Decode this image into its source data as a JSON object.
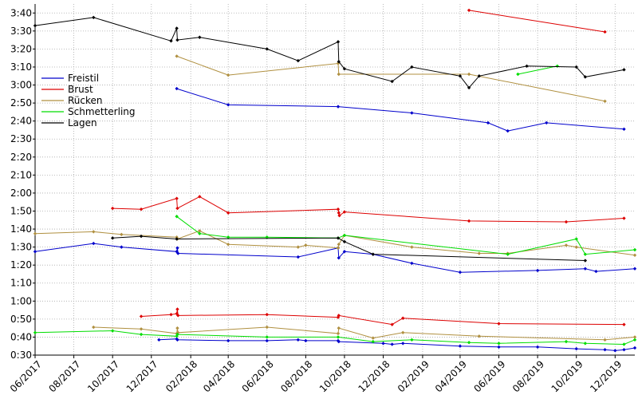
{
  "chart_data": {
    "type": "line",
    "title": "",
    "xlabel": "",
    "ylabel": "",
    "x_axis": {
      "min": "2017-06-01",
      "max": "2020-01-01",
      "ticks": [
        {
          "date": "2017-06-01",
          "label": "06/2017"
        },
        {
          "date": "2017-08-01",
          "label": "08/2017"
        },
        {
          "date": "2017-10-01",
          "label": "10/2017"
        },
        {
          "date": "2017-12-01",
          "label": "12/2017"
        },
        {
          "date": "2018-02-01",
          "label": "02/2018"
        },
        {
          "date": "2018-04-01",
          "label": "04/2018"
        },
        {
          "date": "2018-06-01",
          "label": "06/2018"
        },
        {
          "date": "2018-08-01",
          "label": "08/2018"
        },
        {
          "date": "2018-10-01",
          "label": "10/2018"
        },
        {
          "date": "2018-12-01",
          "label": "12/2018"
        },
        {
          "date": "2019-02-01",
          "label": "02/2019"
        },
        {
          "date": "2019-04-01",
          "label": "04/2019"
        },
        {
          "date": "2019-06-01",
          "label": "06/2019"
        },
        {
          "date": "2019-08-01",
          "label": "08/2019"
        },
        {
          "date": "2019-10-01",
          "label": "10/2019"
        },
        {
          "date": "2019-12-01",
          "label": "12/2019"
        }
      ]
    },
    "y_axis": {
      "min": 30,
      "max": 225,
      "ticks": [
        {
          "value": 30,
          "label": "0:30"
        },
        {
          "value": 40,
          "label": "0:40"
        },
        {
          "value": 50,
          "label": "0:50"
        },
        {
          "value": 60,
          "label": "1:00"
        },
        {
          "value": 70,
          "label": "1:10"
        },
        {
          "value": 80,
          "label": "1:20"
        },
        {
          "value": 90,
          "label": "1:30"
        },
        {
          "value": 100,
          "label": "1:40"
        },
        {
          "value": 110,
          "label": "1:50"
        },
        {
          "value": 120,
          "label": "2:00"
        },
        {
          "value": 130,
          "label": "2:10"
        },
        {
          "value": 140,
          "label": "2:20"
        },
        {
          "value": 150,
          "label": "2:30"
        },
        {
          "value": 160,
          "label": "2:40"
        },
        {
          "value": 170,
          "label": "2:50"
        },
        {
          "value": 180,
          "label": "3:00"
        },
        {
          "value": 190,
          "label": "3:10"
        },
        {
          "value": 200,
          "label": "3:20"
        },
        {
          "value": 210,
          "label": "3:30"
        },
        {
          "value": 220,
          "label": "3:40"
        }
      ]
    },
    "grid": {
      "x": true,
      "y": true,
      "style": "dotted"
    },
    "legend": {
      "position": "upper-left",
      "entries": [
        {
          "name": "Freistil",
          "color": "#0000cc"
        },
        {
          "name": "Brust",
          "color": "#dd0000"
        },
        {
          "name": "Rücken",
          "color": "#b09040"
        },
        {
          "name": "Schmetterling",
          "color": "#00dd00"
        },
        {
          "name": "Lagen",
          "color": "#000000"
        }
      ]
    },
    "series": [
      {
        "name": "Freistil",
        "color": "#0000cc",
        "segments": [
          [
            [
              "2017-12-13",
              38.5
            ],
            [
              "2018-01-10",
              39
            ],
            [
              "2018-01-11",
              38.5
            ],
            [
              "2018-04-01",
              38
            ],
            [
              "2018-06-01",
              38
            ],
            [
              "2018-07-20",
              38.5
            ],
            [
              "2018-08-01",
              38
            ],
            [
              "2018-09-21",
              38
            ],
            [
              "2018-09-22",
              37.5
            ],
            [
              "2018-12-01",
              36.5
            ],
            [
              "2018-12-15",
              36
            ],
            [
              "2019-01-01",
              36.5
            ],
            [
              "2019-04-01",
              35
            ],
            [
              "2019-06-01",
              34.5
            ],
            [
              "2019-08-01",
              34.5
            ],
            [
              "2019-10-01",
              33.5
            ],
            [
              "2019-11-15",
              33
            ],
            [
              "2019-12-01",
              32.5
            ],
            [
              "2019-12-15",
              33
            ],
            [
              "2020-01-01",
              34
            ]
          ],
          [
            [
              "2017-06-01",
              87.5
            ],
            [
              "2017-09-01",
              92
            ],
            [
              "2017-10-15",
              90
            ],
            [
              "2018-01-10",
              87.5
            ],
            [
              "2018-01-11",
              89.5
            ],
            [
              "2018-01-12",
              86.5
            ],
            [
              "2018-07-20",
              84.5
            ],
            [
              "2018-09-21",
              89.5
            ],
            [
              "2018-09-22",
              84
            ],
            [
              "2018-10-01",
              87.5
            ],
            [
              "2018-11-15",
              86
            ],
            [
              "2019-01-15",
              81
            ],
            [
              "2019-04-01",
              76
            ],
            [
              "2019-08-01",
              77
            ],
            [
              "2019-10-15",
              78
            ],
            [
              "2019-11-01",
              76.5
            ],
            [
              "2020-01-01",
              78
            ]
          ],
          [
            [
              "2018-01-10",
              178
            ],
            [
              "2018-04-01",
              169
            ],
            [
              "2018-09-21",
              168
            ],
            [
              "2019-01-15",
              164.5
            ],
            [
              "2019-05-15",
              159
            ],
            [
              "2019-06-15",
              154.5
            ],
            [
              "2019-08-15",
              159
            ],
            [
              "2019-12-15",
              155.5
            ]
          ]
        ]
      },
      {
        "name": "Brust",
        "color": "#dd0000",
        "segments": [
          [
            [
              "2017-11-15",
              51.5
            ],
            [
              "2018-01-01",
              52.5
            ],
            [
              "2018-01-10",
              53
            ],
            [
              "2018-01-11",
              55.5
            ],
            [
              "2018-01-12",
              52
            ],
            [
              "2018-06-01",
              52.5
            ],
            [
              "2018-09-21",
              51
            ],
            [
              "2018-09-22",
              52
            ],
            [
              "2018-12-15",
              47
            ],
            [
              "2019-01-01",
              50.5
            ],
            [
              "2019-06-01",
              47.5
            ],
            [
              "2019-12-15",
              47
            ]
          ],
          [
            [
              "2017-10-01",
              111.5
            ],
            [
              "2017-11-15",
              111
            ],
            [
              "2018-01-10",
              117
            ],
            [
              "2018-01-11",
              111.5
            ],
            [
              "2018-02-15",
              118
            ],
            [
              "2018-04-01",
              109
            ],
            [
              "2018-09-21",
              111
            ],
            [
              "2018-09-22",
              109
            ],
            [
              "2018-09-23",
              107.5
            ],
            [
              "2018-10-01",
              109.5
            ],
            [
              "2019-04-15",
              104.5
            ],
            [
              "2019-09-15",
              104
            ],
            [
              "2019-12-15",
              106
            ]
          ],
          [
            [
              "2019-04-15",
              221.5
            ],
            [
              "2019-11-15",
              209.5
            ]
          ]
        ]
      },
      {
        "name": "Rücken",
        "color": "#b09040",
        "segments": [
          [
            [
              "2017-09-01",
              45.5
            ],
            [
              "2017-11-15",
              44.5
            ],
            [
              "2018-01-10",
              42
            ],
            [
              "2018-01-11",
              45
            ],
            [
              "2018-01-12",
              42.5
            ],
            [
              "2018-06-01",
              45.5
            ],
            [
              "2018-09-21",
              42
            ],
            [
              "2018-09-22",
              45
            ],
            [
              "2018-11-15",
              39.5
            ],
            [
              "2019-01-01",
              42.5
            ],
            [
              "2019-05-01",
              40.5
            ],
            [
              "2019-11-15",
              38.5
            ],
            [
              "2020-01-01",
              40
            ]
          ],
          [
            [
              "2017-06-01",
              97.5
            ],
            [
              "2017-09-01",
              98.5
            ],
            [
              "2017-10-15",
              97
            ],
            [
              "2018-01-10",
              95.5
            ],
            [
              "2018-01-11",
              94.5
            ],
            [
              "2018-02-15",
              99
            ],
            [
              "2018-04-01",
              91.5
            ],
            [
              "2018-07-20",
              90
            ],
            [
              "2018-08-01",
              91
            ],
            [
              "2018-09-21",
              89.5
            ],
            [
              "2018-09-22",
              91.5
            ],
            [
              "2018-10-01",
              96.5
            ],
            [
              "2019-01-15",
              90
            ],
            [
              "2019-05-01",
              86.5
            ],
            [
              "2019-06-15",
              86.5
            ],
            [
              "2019-09-15",
              91
            ],
            [
              "2019-10-01",
              90
            ],
            [
              "2020-01-01",
              85.5
            ]
          ],
          [
            [
              "2018-01-10",
              196
            ],
            [
              "2018-04-01",
              185.5
            ],
            [
              "2018-09-21",
              192
            ],
            [
              "2018-09-22",
              186
            ],
            [
              "2019-04-15",
              186
            ],
            [
              "2019-11-15",
              171
            ]
          ]
        ]
      },
      {
        "name": "Schmetterling",
        "color": "#00dd00",
        "segments": [
          [
            [
              "2017-06-01",
              42.5
            ],
            [
              "2017-10-01",
              43.5
            ],
            [
              "2017-11-15",
              41.5
            ],
            [
              "2018-01-10",
              40.5
            ],
            [
              "2018-01-11",
              41.5
            ],
            [
              "2018-06-01",
              40
            ],
            [
              "2018-09-21",
              40
            ],
            [
              "2018-11-15",
              37.5
            ],
            [
              "2019-01-15",
              38.5
            ],
            [
              "2019-04-15",
              37
            ],
            [
              "2019-06-01",
              36.5
            ],
            [
              "2019-09-15",
              37.5
            ],
            [
              "2019-10-15",
              36.5
            ],
            [
              "2019-12-15",
              36
            ],
            [
              "2020-01-01",
              38.5
            ]
          ],
          [
            [
              "2018-01-10",
              107
            ],
            [
              "2018-02-15",
              97.5
            ],
            [
              "2018-04-01",
              95.5
            ],
            [
              "2018-06-01",
              95.5
            ],
            [
              "2018-09-21",
              95
            ],
            [
              "2018-10-01",
              96.5
            ],
            [
              "2019-06-15",
              86
            ],
            [
              "2019-10-01",
              94.5
            ],
            [
              "2019-10-15",
              86
            ],
            [
              "2020-01-01",
              88.5
            ]
          ],
          [
            [
              "2019-07-01",
              186
            ],
            [
              "2019-09-01",
              190.5
            ]
          ]
        ]
      },
      {
        "name": "Lagen",
        "color": "#000000",
        "segments": [
          [
            [
              "2017-10-01",
              95
            ],
            [
              "2017-11-15",
              96
            ],
            [
              "2018-01-10",
              94.5
            ],
            [
              "2018-09-21",
              95
            ],
            [
              "2018-10-01",
              93
            ],
            [
              "2018-11-15",
              86
            ],
            [
              "2019-10-15",
              82.5
            ]
          ],
          [
            [
              "2017-06-01",
              213
            ],
            [
              "2017-09-01",
              217.5
            ],
            [
              "2018-01-01",
              204.5
            ],
            [
              "2018-01-10",
              211.5
            ],
            [
              "2018-01-11",
              205
            ],
            [
              "2018-02-15",
              206.5
            ],
            [
              "2018-06-01",
              200
            ],
            [
              "2018-07-20",
              193.5
            ],
            [
              "2018-09-21",
              204
            ],
            [
              "2018-09-22",
              193
            ],
            [
              "2018-10-01",
              189
            ],
            [
              "2018-12-15",
              182
            ],
            [
              "2019-01-15",
              190
            ],
            [
              "2019-04-01",
              185
            ],
            [
              "2019-04-15",
              178.5
            ],
            [
              "2019-05-01",
              185
            ],
            [
              "2019-07-15",
              190.5
            ],
            [
              "2019-10-01",
              190
            ],
            [
              "2019-10-15",
              184.5
            ],
            [
              "2019-12-15",
              188.5
            ]
          ]
        ]
      }
    ]
  }
}
